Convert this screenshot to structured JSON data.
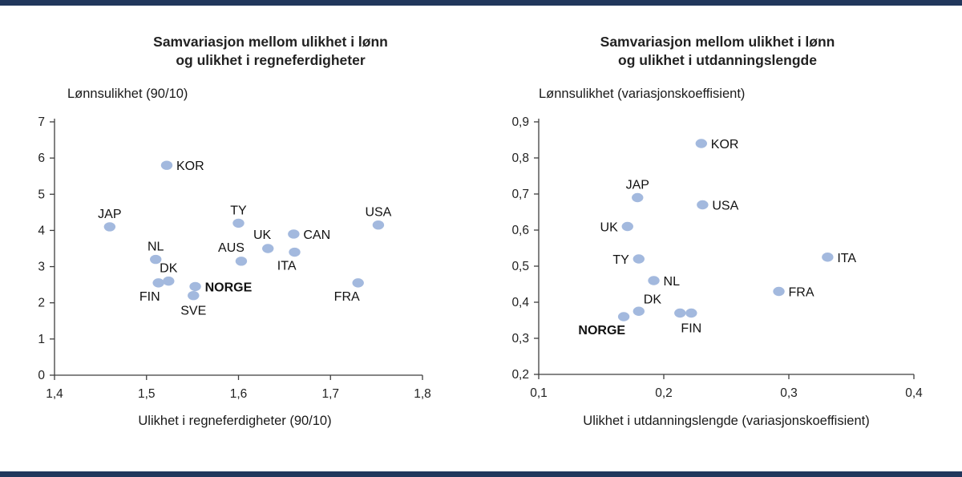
{
  "figure": {
    "bar_color": "#21375c",
    "background": "#ffffff",
    "point_color": "#a3b9de",
    "axis_color": "#3f3f3f",
    "text_color": "#1a1a1a"
  },
  "chart_data": [
    {
      "type": "scatter",
      "title_lines": [
        "Samvariasjon mellom ulikhet i lønn",
        "og ulikhet i regneferdigheter"
      ],
      "ylabel": "Lønnsulikhet (90/10)",
      "xlabel": "Ulikhet i regneferdigheter (90/10)",
      "xlim": [
        1.4,
        1.8
      ],
      "ylim": [
        0,
        7
      ],
      "grid": false,
      "legend": "none",
      "xticks": [
        {
          "v": 1.4,
          "label": "1,4"
        },
        {
          "v": 1.5,
          "label": "1,5"
        },
        {
          "v": 1.6,
          "label": "1,6"
        },
        {
          "v": 1.7,
          "label": "1,7"
        },
        {
          "v": 1.8,
          "label": "1,8"
        }
      ],
      "yticks": [
        {
          "v": 0,
          "label": "0"
        },
        {
          "v": 1,
          "label": "1"
        },
        {
          "v": 2,
          "label": "2"
        },
        {
          "v": 3,
          "label": "3"
        },
        {
          "v": 4,
          "label": "4"
        },
        {
          "v": 5,
          "label": "5"
        },
        {
          "v": 6,
          "label": "6"
        },
        {
          "v": 7,
          "label": "7"
        }
      ],
      "points": [
        {
          "label": "JAP",
          "x": 1.46,
          "y": 4.1,
          "lp": "above"
        },
        {
          "label": "KOR",
          "x": 1.522,
          "y": 5.8,
          "lp": "right"
        },
        {
          "label": "NL",
          "x": 1.51,
          "y": 3.2,
          "lp": "above"
        },
        {
          "label": "DK",
          "x": 1.524,
          "y": 2.6,
          "lp": "above"
        },
        {
          "label": "FIN",
          "x": 1.513,
          "y": 2.55,
          "lp": "below-left"
        },
        {
          "label": "NORGE",
          "x": 1.553,
          "y": 2.45,
          "lp": "right",
          "bold": true
        },
        {
          "label": "SVE",
          "x": 1.551,
          "y": 2.2,
          "lp": "below"
        },
        {
          "label": "TY",
          "x": 1.6,
          "y": 4.2,
          "lp": "above"
        },
        {
          "label": "AUS",
          "x": 1.603,
          "y": 3.15,
          "lp": "above-left"
        },
        {
          "label": "UK",
          "x": 1.632,
          "y": 3.5,
          "lp": "above-left"
        },
        {
          "label": "CAN",
          "x": 1.66,
          "y": 3.9,
          "lp": "right"
        },
        {
          "label": "ITA",
          "x": 1.661,
          "y": 3.4,
          "lp": "below-left"
        },
        {
          "label": "USA",
          "x": 1.752,
          "y": 4.15,
          "lp": "above"
        },
        {
          "label": "FRA",
          "x": 1.73,
          "y": 2.55,
          "lp": "below-left"
        }
      ]
    },
    {
      "type": "scatter",
      "title_lines": [
        "Samvariasjon mellom ulikhet i lønn",
        "og ulikhet i utdanningslengde"
      ],
      "ylabel": "Lønnsulikhet (variasjonskoeffisient)",
      "xlabel": "Ulikhet i utdanningslengde (variasjonskoeffisient)",
      "xlim": [
        0.1,
        0.4
      ],
      "ylim": [
        0.2,
        0.9
      ],
      "grid": false,
      "legend": "none",
      "xticks": [
        {
          "v": 0.1,
          "label": "0,1"
        },
        {
          "v": 0.2,
          "label": "0,2"
        },
        {
          "v": 0.3,
          "label": "0,3"
        },
        {
          "v": 0.4,
          "label": "0,4"
        }
      ],
      "yticks": [
        {
          "v": 0.2,
          "label": "0,2"
        },
        {
          "v": 0.3,
          "label": "0,3"
        },
        {
          "v": 0.4,
          "label": "0,4"
        },
        {
          "v": 0.5,
          "label": "0,5"
        },
        {
          "v": 0.6,
          "label": "0,6"
        },
        {
          "v": 0.7,
          "label": "0,7"
        },
        {
          "v": 0.8,
          "label": "0,8"
        },
        {
          "v": 0.9,
          "label": "0,9"
        }
      ],
      "points": [
        {
          "label": "KOR",
          "x": 0.23,
          "y": 0.84,
          "lp": "right"
        },
        {
          "label": "JAP",
          "x": 0.179,
          "y": 0.69,
          "lp": "above"
        },
        {
          "label": "USA",
          "x": 0.231,
          "y": 0.67,
          "lp": "right"
        },
        {
          "label": "UK",
          "x": 0.171,
          "y": 0.61,
          "lp": "left"
        },
        {
          "label": "TY",
          "x": 0.18,
          "y": 0.52,
          "lp": "left"
        },
        {
          "label": "NL",
          "x": 0.192,
          "y": 0.46,
          "lp": "right"
        },
        {
          "label": "ITA",
          "x": 0.331,
          "y": 0.525,
          "lp": "right"
        },
        {
          "label": "FRA",
          "x": 0.292,
          "y": 0.43,
          "lp": "right"
        },
        {
          "label": "DK",
          "x": 0.18,
          "y": 0.375,
          "lp": "above-right"
        },
        {
          "label": "NORGE",
          "x": 0.168,
          "y": 0.36,
          "lp": "below-left",
          "bold": true
        },
        {
          "label": "",
          "x": 0.213,
          "y": 0.37
        },
        {
          "label": "FIN",
          "x": 0.222,
          "y": 0.37,
          "lp": "below"
        }
      ]
    }
  ]
}
